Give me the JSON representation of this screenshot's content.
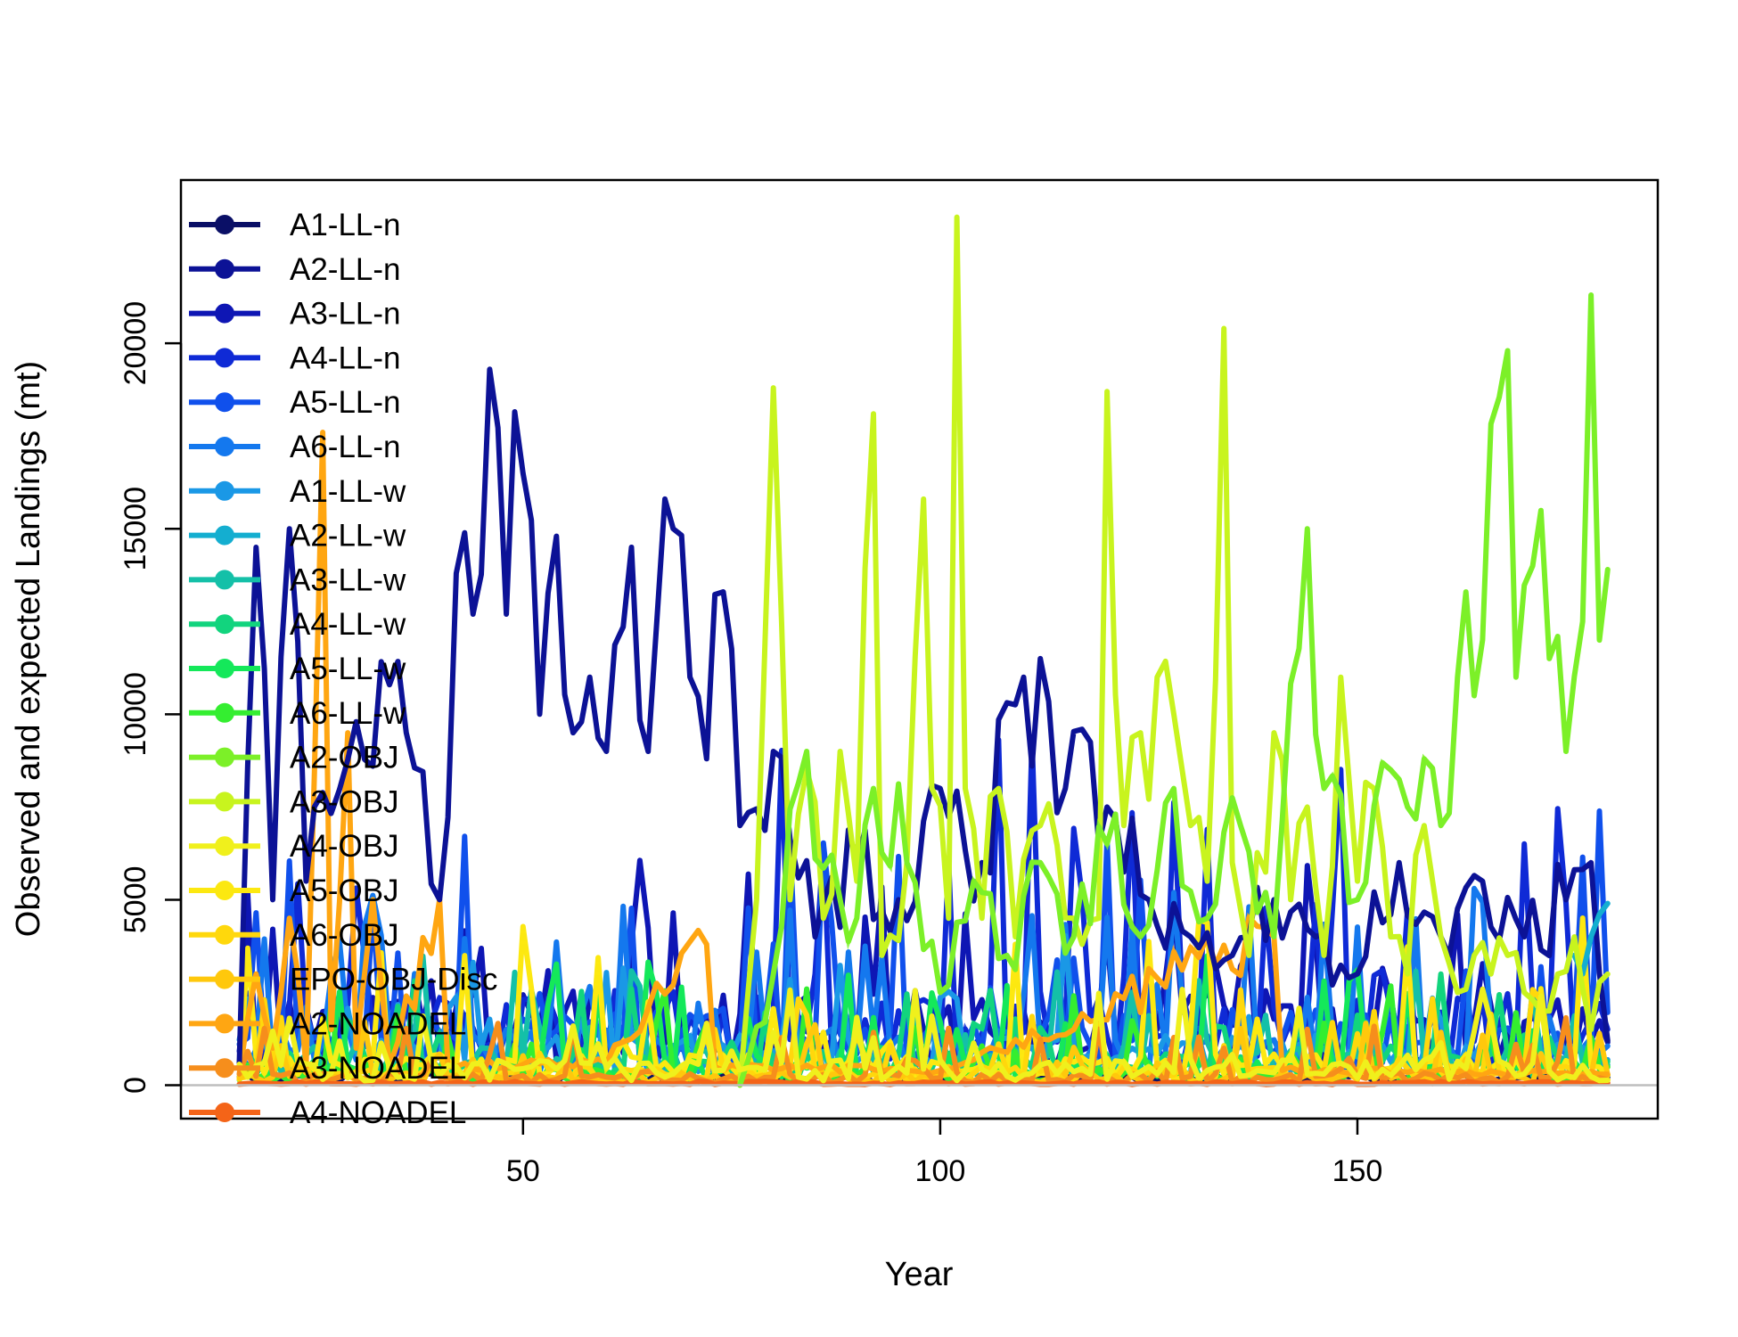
{
  "chart_data": {
    "type": "line",
    "title": "",
    "xlabel": "Year",
    "ylabel": "Observed and expected Landings (mt)",
    "xlim": [
      9,
      186
    ],
    "ylim": [
      -900,
      24400
    ],
    "x_ticks": [
      50,
      100,
      150
    ],
    "y_ticks": [
      0,
      5000,
      10000,
      15000,
      20000
    ],
    "x_tick_labels": [
      "50",
      "100",
      "150"
    ],
    "y_tick_labels": [
      "0",
      "5000",
      "10000",
      "15000",
      "20000"
    ],
    "x_range": [
      16,
      180
    ],
    "zero_line": 0,
    "grid": false,
    "legend_position": "top-left",
    "series": [
      {
        "name": "A1-LL-n",
        "color": "#0a0f66",
        "level": 200,
        "spike": 0,
        "seed": 1
      },
      {
        "name": "A2-LL-n",
        "color": "#0c1296",
        "level": 5000,
        "spike": 8000,
        "seed": 2,
        "key_points": [
          [
            16,
            600
          ],
          [
            18,
            14500
          ],
          [
            20,
            5000
          ],
          [
            22,
            15000
          ],
          [
            24,
            5500
          ],
          [
            30,
            9800
          ],
          [
            36,
            9500
          ],
          [
            40,
            5000
          ],
          [
            42,
            13800
          ],
          [
            44,
            12700
          ],
          [
            46,
            19300
          ],
          [
            48,
            12700
          ],
          [
            50,
            16500
          ],
          [
            52,
            10000
          ],
          [
            54,
            14800
          ],
          [
            56,
            9500
          ],
          [
            58,
            11000
          ],
          [
            60,
            9000
          ],
          [
            63,
            14500
          ],
          [
            65,
            9000
          ],
          [
            67,
            15800
          ],
          [
            68,
            15000
          ],
          [
            70,
            11000
          ],
          [
            72,
            8800
          ],
          [
            74,
            13300
          ],
          [
            76,
            7000
          ],
          [
            80,
            9000
          ],
          [
            85,
            4000
          ],
          [
            90,
            6000
          ],
          [
            95,
            5000
          ],
          [
            100,
            8000
          ],
          [
            105,
            6000
          ],
          [
            110,
            11000
          ],
          [
            112,
            11500
          ],
          [
            115,
            8000
          ],
          [
            120,
            7500
          ],
          [
            125,
            5000
          ],
          [
            130,
            4000
          ],
          [
            135,
            3500
          ],
          [
            140,
            5000
          ],
          [
            145,
            4000
          ],
          [
            150,
            3000
          ],
          [
            155,
            6000
          ],
          [
            160,
            4000
          ],
          [
            165,
            5500
          ],
          [
            170,
            4000
          ],
          [
            175,
            5000
          ],
          [
            178,
            6000
          ],
          [
            180,
            1200
          ]
        ]
      },
      {
        "name": "A3-LL-n",
        "color": "#0e16b4",
        "level": 1500,
        "spike": 5000,
        "seed": 3
      },
      {
        "name": "A4-LL-n",
        "color": "#0f2ad6",
        "level": 1500,
        "spike": 7000,
        "seed": 4
      },
      {
        "name": "A5-LL-n",
        "color": "#1050ec",
        "level": 1200,
        "spike": 5500,
        "seed": 5
      },
      {
        "name": "A6-LL-n",
        "color": "#1478ee",
        "level": 900,
        "spike": 4500,
        "seed": 6
      },
      {
        "name": "A1-LL-w",
        "color": "#1a98e6",
        "level": 800,
        "spike": 3000,
        "seed": 7
      },
      {
        "name": "A2-LL-w",
        "color": "#14aed0",
        "level": 1800,
        "spike": 2500,
        "seed": 8,
        "key_points": [
          [
            176,
            3500
          ],
          [
            178,
            4000
          ],
          [
            180,
            4900
          ]
        ]
      },
      {
        "name": "A3-LL-w",
        "color": "#14c0a8",
        "level": 600,
        "spike": 2500,
        "seed": 9
      },
      {
        "name": "A4-LL-w",
        "color": "#12d47e",
        "level": 500,
        "spike": 2500,
        "seed": 10
      },
      {
        "name": "A5-LL-w",
        "color": "#14e85a",
        "level": 400,
        "spike": 3000,
        "seed": 11
      },
      {
        "name": "A6-LL-w",
        "color": "#34ee30",
        "level": 300,
        "spike": 2500,
        "seed": 12
      },
      {
        "name": "A2-OBJ",
        "color": "#7cf028",
        "level": 0,
        "spike": 0,
        "seed": 13,
        "key_points": [
          [
            76,
            0
          ],
          [
            80,
            3000
          ],
          [
            84,
            9000
          ],
          [
            88,
            5000
          ],
          [
            90,
            4500
          ],
          [
            92,
            8000
          ],
          [
            96,
            6000
          ],
          [
            100,
            2500
          ],
          [
            104,
            5500
          ],
          [
            108,
            3500
          ],
          [
            112,
            6000
          ],
          [
            116,
            4000
          ],
          [
            120,
            6500
          ],
          [
            124,
            4000
          ],
          [
            128,
            8000
          ],
          [
            132,
            4500
          ],
          [
            136,
            7000
          ],
          [
            140,
            4000
          ],
          [
            144,
            15000
          ],
          [
            146,
            8000
          ],
          [
            150,
            5000
          ],
          [
            154,
            8500
          ],
          [
            156,
            7500
          ],
          [
            158,
            8800
          ],
          [
            160,
            7000
          ],
          [
            162,
            11000
          ],
          [
            164,
            10500
          ],
          [
            165,
            12000
          ],
          [
            168,
            19800
          ],
          [
            169,
            11000
          ],
          [
            171,
            14000
          ],
          [
            173,
            11500
          ],
          [
            175,
            9000
          ],
          [
            177,
            12500
          ],
          [
            178,
            21300
          ],
          [
            179,
            12000
          ],
          [
            180,
            13900
          ]
        ]
      },
      {
        "name": "A3-OBJ",
        "color": "#c8f41e",
        "level": 0,
        "spike": 0,
        "seed": 14,
        "key_points": [
          [
            76,
            0
          ],
          [
            78,
            5000
          ],
          [
            80,
            18800
          ],
          [
            82,
            5000
          ],
          [
            84,
            8500
          ],
          [
            86,
            4500
          ],
          [
            88,
            9000
          ],
          [
            90,
            5500
          ],
          [
            92,
            18100
          ],
          [
            93,
            3500
          ],
          [
            96,
            6000
          ],
          [
            98,
            15800
          ],
          [
            99,
            8000
          ],
          [
            101,
            4500
          ],
          [
            102,
            23400
          ],
          [
            103,
            8000
          ],
          [
            105,
            4500
          ],
          [
            107,
            8000
          ],
          [
            109,
            4000
          ],
          [
            112,
            7000
          ],
          [
            116,
            4500
          ],
          [
            119,
            4500
          ],
          [
            120,
            18700
          ],
          [
            122,
            7000
          ],
          [
            124,
            9500
          ],
          [
            126,
            11000
          ],
          [
            128,
            10000
          ],
          [
            130,
            7000
          ],
          [
            132,
            5500
          ],
          [
            134,
            20400
          ],
          [
            135,
            6000
          ],
          [
            137,
            3500
          ],
          [
            140,
            9500
          ],
          [
            142,
            5000
          ],
          [
            144,
            7500
          ],
          [
            146,
            3500
          ],
          [
            148,
            11000
          ],
          [
            150,
            5500
          ],
          [
            152,
            8000
          ],
          [
            154,
            4000
          ],
          [
            156,
            3000
          ],
          [
            158,
            7000
          ],
          [
            160,
            4000
          ],
          [
            162,
            2500
          ],
          [
            164,
            3500
          ],
          [
            166,
            3000
          ],
          [
            168,
            3500
          ],
          [
            170,
            2500
          ],
          [
            172,
            2000
          ],
          [
            174,
            3000
          ],
          [
            176,
            4000
          ],
          [
            178,
            1500
          ],
          [
            180,
            3000
          ]
        ]
      },
      {
        "name": "A4-OBJ",
        "color": "#f0f01c",
        "level": 400,
        "spike": 2500,
        "seed": 15
      },
      {
        "name": "A5-OBJ",
        "color": "#fce810",
        "level": 500,
        "spike": 4000,
        "seed": 16
      },
      {
        "name": "A6-OBJ",
        "color": "#ffd80c",
        "level": 300,
        "spike": 2500,
        "seed": 17
      },
      {
        "name": "EPO-OBJ-Disc",
        "color": "#ffc80c",
        "level": 200,
        "spike": 1500,
        "seed": 18
      },
      {
        "name": "A2-NOADEL",
        "color": "#ffa612",
        "level": 300,
        "spike": 3500,
        "seed": 19,
        "key_points": [
          [
            16,
            300
          ],
          [
            18,
            3000
          ],
          [
            20,
            1000
          ],
          [
            22,
            4500
          ],
          [
            24,
            500
          ],
          [
            26,
            17600
          ],
          [
            27,
            1500
          ],
          [
            29,
            9500
          ],
          [
            30,
            1000
          ],
          [
            32,
            5000
          ],
          [
            34,
            500
          ],
          [
            40,
            5000
          ],
          [
            41,
            500
          ],
          [
            60,
            600
          ],
          [
            72,
            3800
          ],
          [
            73,
            500
          ],
          [
            100,
            400
          ],
          [
            140,
            4000
          ],
          [
            141,
            400
          ],
          [
            180,
            300
          ]
        ]
      },
      {
        "name": "A3-NOADEL",
        "color": "#f68e1c",
        "level": 200,
        "spike": 1500,
        "seed": 20
      },
      {
        "name": "A4-NOADEL",
        "color": "#f46418",
        "level": 60,
        "spike": 0,
        "seed": 21
      }
    ]
  }
}
